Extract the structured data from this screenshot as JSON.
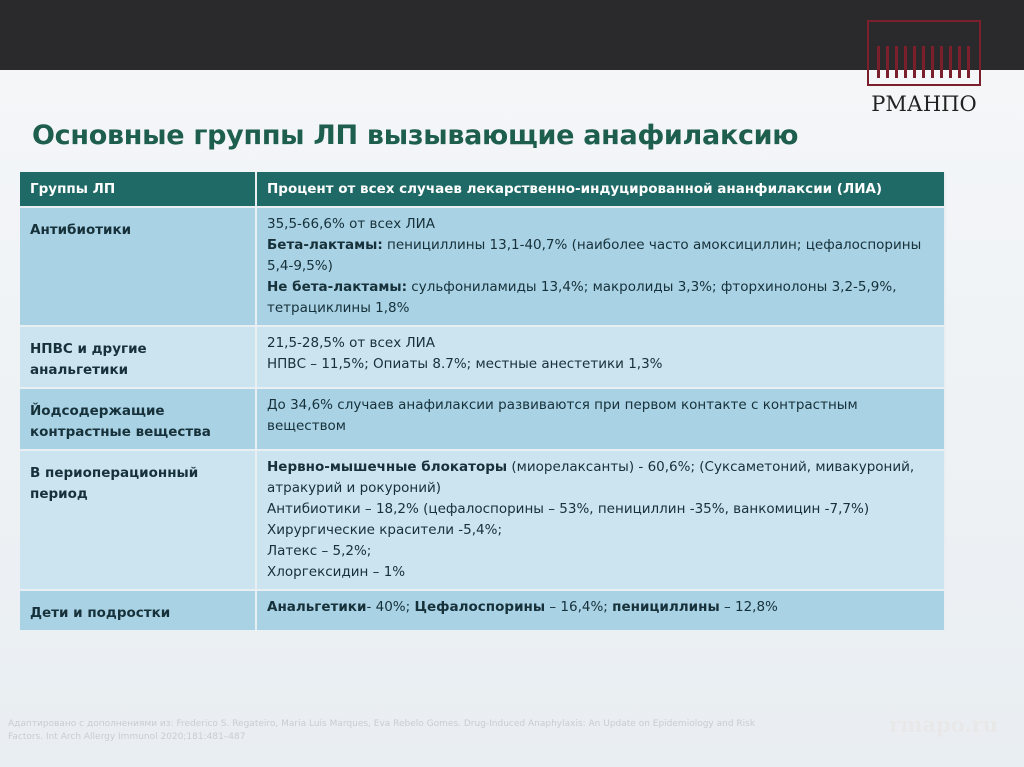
{
  "header": {
    "title": "Основные группы ЛП вызывающие анафилаксию",
    "logo": "РМАНПО"
  },
  "table": {
    "columns": [
      "Группы ЛП",
      "Процент от всех случаев лекарственно-индуцированной ананфилаксии (ЛИА)"
    ],
    "rows": [
      {
        "group": "Антибиотики",
        "lines": [
          [
            {
              "text": "35,5-66,6% от всех ЛИА"
            }
          ],
          [
            {
              "text": "Бета-лактамы:",
              "bold": true
            },
            {
              "text": " пенициллины 13,1-40,7% (наиболее часто амоксициллин; цефалоспорины 5,4-9,5%)"
            }
          ],
          [
            {
              "text": "Не бета-лактамы:",
              "bold": true
            },
            {
              "text": " сульфониламиды 13,4%; макролиды 3,3%; фторхинолоны 3,2-5,9%, тетрациклины 1,8%"
            }
          ]
        ]
      },
      {
        "group": "НПВС и другие анальгетики",
        "lines": [
          [
            {
              "text": "21,5-28,5% от всех ЛИА"
            }
          ],
          [
            {
              "text": "НПВС – 11,5%; Опиаты 8.7%; местные анестетики 1,3%"
            }
          ]
        ]
      },
      {
        "group": "Йодсодержащие контрастные вещества",
        "lines": [
          [
            {
              "text": "До 34,6% случаев анафилаксии развиваются при первом контакте с контрастным веществом"
            }
          ]
        ]
      },
      {
        "group": "В периоперационный период",
        "lines": [
          [
            {
              "text": "Нервно-мышечные блокаторы",
              "bold": true
            },
            {
              "text": " (миорелаксанты) - 60,6%; (Суксаметоний, мивакуроний, атракурий и рокуроний)"
            }
          ],
          [
            {
              "text": "Антибиотики – 18,2% (цефалоспорины – 53%, пенициллин -35%, ванкомицин -7,7%)"
            }
          ],
          [
            {
              "text": "Хирургические красители -5,4%;"
            }
          ],
          [
            {
              "text": "Латекс – 5,2%;"
            }
          ],
          [
            {
              "text": "Хлоргексидин – 1%"
            }
          ]
        ]
      },
      {
        "group": "Дети и подростки",
        "lines": [
          [
            {
              "text": "Анальгетики",
              "bold": true
            },
            {
              "text": "- 40%; "
            },
            {
              "text": "Цефалоспорины",
              "bold": true
            },
            {
              "text": " – 16,4%; "
            },
            {
              "text": "пенициллины",
              "bold": true
            },
            {
              "text": " – 12,8%"
            }
          ]
        ]
      }
    ]
  },
  "footer": {
    "citation": "Адаптировано с дополнениями из: Frederico S. Regateiro, Maria Luís Marques, Eva Rebelo Gomes. Drug-Induced Anaphylaxis: An Update on Epidemiology and Risk Factors. Int Arch Allergy Immunol 2020;181:481–487",
    "site": "rmapo.ru"
  }
}
